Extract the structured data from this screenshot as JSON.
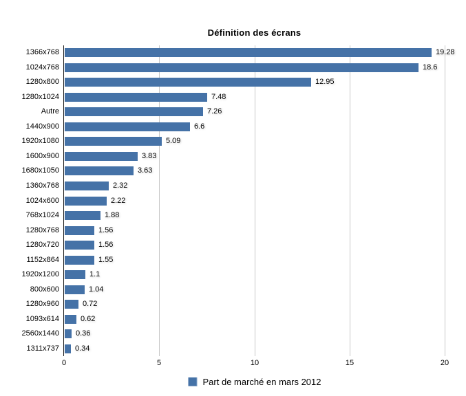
{
  "chart_data": {
    "type": "bar",
    "orientation": "horizontal",
    "title": "Définition des écrans",
    "categories": [
      "1366x768",
      "1024x768",
      "1280x800",
      "1280x1024",
      "Autre",
      "1440x900",
      "1920x1080",
      "1600x900",
      "1680x1050",
      "1360x768",
      "1024x600",
      "768x1024",
      "1280x768",
      "1280x720",
      "1152x864",
      "1920x1200",
      "800x600",
      "1280x960",
      "1093x614",
      "2560x1440",
      "1311x737"
    ],
    "values": [
      19.28,
      18.6,
      12.95,
      7.48,
      7.26,
      6.6,
      5.09,
      3.83,
      3.63,
      2.32,
      2.22,
      1.88,
      1.56,
      1.56,
      1.55,
      1.1,
      1.04,
      0.72,
      0.62,
      0.36,
      0.34
    ],
    "value_labels": [
      "19.28",
      "18.6",
      "12.95",
      "7.48",
      "7.26",
      "6.6",
      "5.09",
      "3.83",
      "3.63",
      "2.32",
      "2.22",
      "1.88",
      "1.56",
      "1.56",
      "1.55",
      "1.1",
      "1.04",
      "0.72",
      "0.62",
      "0.36",
      "0.34"
    ],
    "xlabel": "",
    "ylabel": "",
    "xlim": [
      0,
      20
    ],
    "x_ticks": [
      0,
      5,
      10,
      15,
      20
    ],
    "grid": "vertical-gridlines-on",
    "legend": {
      "position": "bottom-center",
      "label": "Part de marché en mars 2012"
    },
    "colors": {
      "bar": "#4572A7",
      "gridline": "#c6c6c6",
      "axis_line": "#1a1a1a",
      "text": "#000000",
      "background": "#ffffff"
    }
  }
}
